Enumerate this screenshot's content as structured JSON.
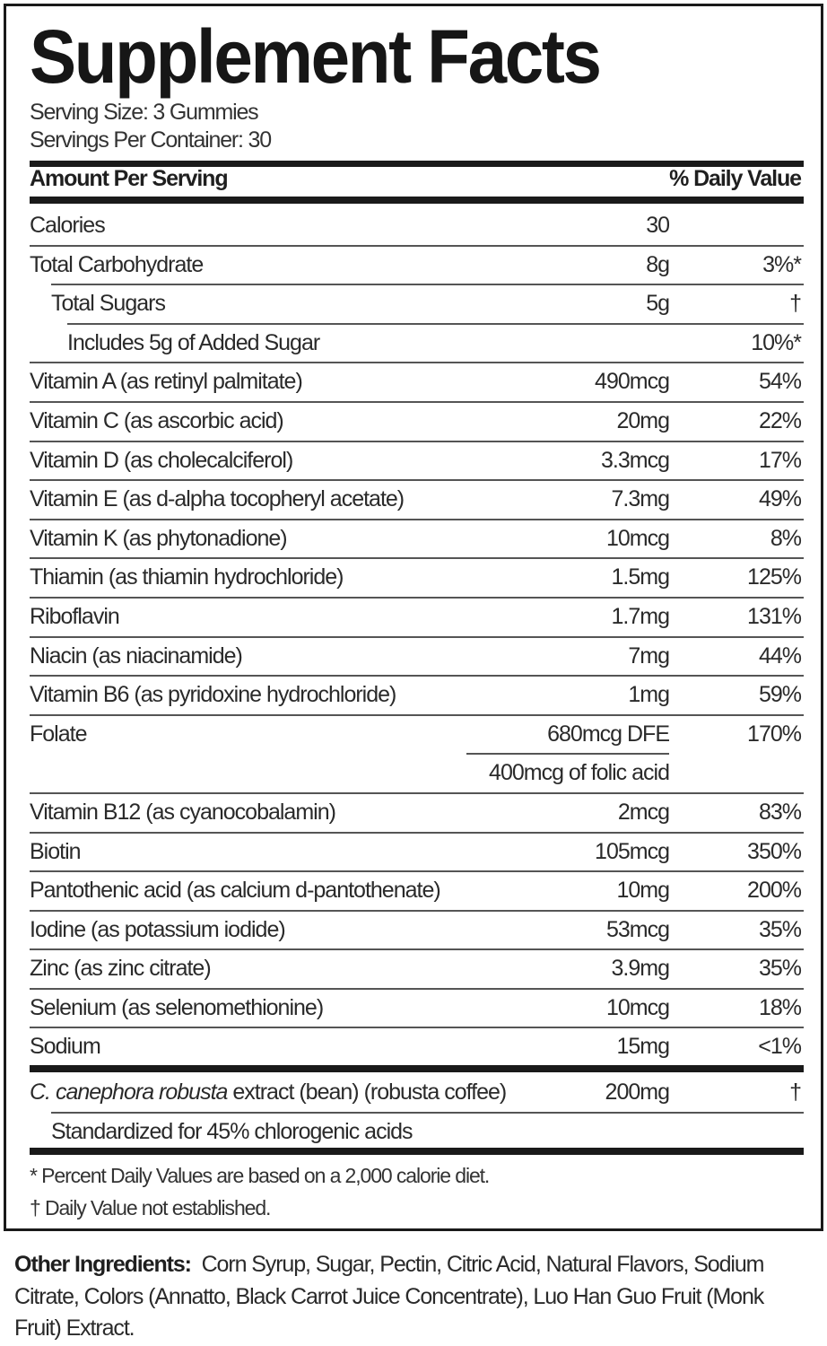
{
  "title": "Supplement Facts",
  "serving_size": "Serving Size: 3 Gummies",
  "servings_per_container": "Servings Per Container: 30",
  "header": {
    "amount": "Amount Per Serving",
    "dv": "% Daily Value"
  },
  "rows": [
    {
      "name": "Calories",
      "amount": "30",
      "dv": "",
      "indent": 0
    },
    {
      "name": "Total Carbohydrate",
      "amount": "8g",
      "dv": "3%*",
      "indent": 0
    },
    {
      "name": "Total Sugars",
      "amount": "5g",
      "dv": "†",
      "indent": 1
    },
    {
      "name": "Includes 5g of Added Sugar",
      "amount": "",
      "dv": "10%*",
      "indent": 2
    },
    {
      "name": "Vitamin A (as retinyl palmitate)",
      "amount": "490mcg",
      "dv": "54%",
      "indent": 0
    },
    {
      "name": "Vitamin C (as ascorbic acid)",
      "amount": "20mg",
      "dv": "22%",
      "indent": 0
    },
    {
      "name": "Vitamin D (as cholecalciferol)",
      "amount": "3.3mcg",
      "dv": "17%",
      "indent": 0
    },
    {
      "name": "Vitamin E (as d-alpha tocopheryl acetate)",
      "amount": "7.3mg",
      "dv": "49%",
      "indent": 0
    },
    {
      "name": "Vitamin K (as phytonadione)",
      "amount": "10mcg",
      "dv": "8%",
      "indent": 0
    },
    {
      "name": "Thiamin (as thiamin hydrochloride)",
      "amount": "1.5mg",
      "dv": "125%",
      "indent": 0
    },
    {
      "name": "Riboflavin",
      "amount": "1.7mg",
      "dv": "131%",
      "indent": 0
    },
    {
      "name": "Niacin (as niacinamide)",
      "amount": "7mg",
      "dv": "44%",
      "indent": 0
    },
    {
      "name": "Vitamin B6 (as pyridoxine hydrochloride)",
      "amount": "1mg",
      "dv": "59%",
      "indent": 0
    },
    {
      "name": "Folate",
      "amount": "680mcg DFE",
      "dv": "170%",
      "indent": 0
    },
    {
      "name": "",
      "amount": "400mcg of folic acid",
      "dv": "",
      "indent": 0,
      "sub": true
    },
    {
      "name": "Vitamin B12 (as cyanocobalamin)",
      "amount": "2mcg",
      "dv": "83%",
      "indent": 0
    },
    {
      "name": "Biotin",
      "amount": "105mcg",
      "dv": "350%",
      "indent": 0
    },
    {
      "name": "Pantothenic acid (as calcium d-pantothenate)",
      "amount": "10mg",
      "dv": "200%",
      "indent": 0
    },
    {
      "name": "Iodine (as potassium iodide)",
      "amount": "53mcg",
      "dv": "35%",
      "indent": 0
    },
    {
      "name": "Zinc (as zinc citrate)",
      "amount": "3.9mg",
      "dv": "35%",
      "indent": 0
    },
    {
      "name": "Selenium (as selenomethionine)",
      "amount": "10mcg",
      "dv": "18%",
      "indent": 0
    },
    {
      "name": "Sodium",
      "amount": "15mg",
      "dv": "<1%",
      "indent": 0
    }
  ],
  "botanical": {
    "name_italic": "C. canephora robusta",
    "name_rest": " extract (bean) (robusta coffee)",
    "amount": "200mg",
    "dv": "†",
    "sub": "Standardized for 45% chlorogenic acids"
  },
  "footnotes": [
    "* Percent Daily Values are based on a 2,000 calorie diet.",
    "† Daily Value not established."
  ],
  "other_ingredients": {
    "label": "Other Ingredients:",
    "text": "Corn Syrup, Sugar, Pectin, Citric Acid, Natural Flavors, Sodium Citrate, Colors (Annatto, Black Carrot Juice Concentrate), Luo Han Guo Fruit (Monk Fruit) Extract."
  }
}
